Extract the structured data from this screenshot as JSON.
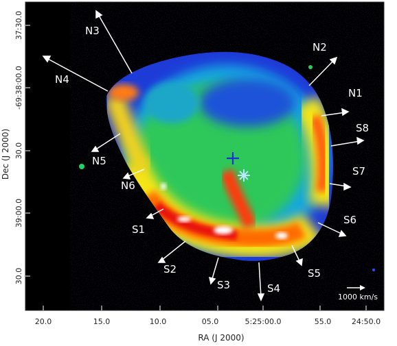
{
  "axes": {
    "x_title": "RA (J 2000)",
    "y_title": "Dec (J 2000)",
    "x_ticks": [
      "20.0",
      "15.0",
      "10.0",
      "05.0",
      "5:25:00.0",
      "55.0",
      "24:50.0"
    ],
    "y_ticks": [
      "37:30.0",
      "-69:38:00.0",
      "30.0",
      "39:00.0",
      "30.0"
    ]
  },
  "velocity_vectors": [
    "N1",
    "N2",
    "N3",
    "N4",
    "N5",
    "N6",
    "S1",
    "S2",
    "S3",
    "S4",
    "S5",
    "S6",
    "S7",
    "S8"
  ],
  "scale_bar": {
    "label": "1000 km/s"
  },
  "markers": [
    {
      "symbol": "plus",
      "color": "#1f2fd6"
    },
    {
      "symbol": "star",
      "color": "#bfe8ff"
    }
  ],
  "colors": {
    "background": "#000000",
    "frame": "#2a2a2a",
    "arrows": "#ffffff"
  }
}
